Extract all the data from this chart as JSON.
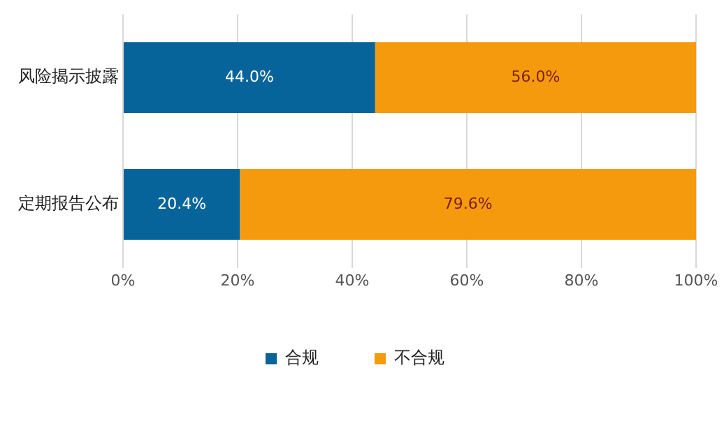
{
  "chart_data": {
    "type": "bar",
    "orientation": "horizontal",
    "stacked": true,
    "categories": [
      "风险揭示披露",
      "定期报告公布"
    ],
    "series": [
      {
        "name": "合规",
        "color": "#07649a",
        "values": [
          44.0,
          20.4
        ],
        "value_labels": [
          "44.0%",
          "20.4%"
        ]
      },
      {
        "name": "不合规",
        "color": "#f69a0d",
        "values": [
          56.0,
          79.6
        ],
        "value_labels": [
          "56.0%",
          "79.6%"
        ]
      }
    ],
    "xlim": [
      0,
      100
    ],
    "xticks": [
      {
        "value": 0,
        "label": "0%"
      },
      {
        "value": 20,
        "label": "20%"
      },
      {
        "value": 40,
        "label": "40%"
      },
      {
        "value": 60,
        "label": "60%"
      },
      {
        "value": 80,
        "label": "80%"
      },
      {
        "value": 100,
        "label": "100%"
      }
    ],
    "grid": "x",
    "legend": "bottom"
  }
}
